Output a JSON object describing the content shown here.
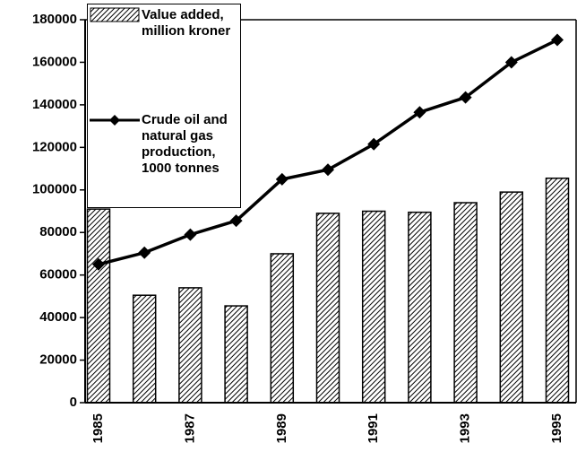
{
  "chart_data": {
    "type": "bar_line",
    "categories": [
      "1985",
      null,
      "1987",
      null,
      "1989",
      null,
      "1991",
      null,
      "1993",
      null,
      "1995"
    ],
    "series": [
      {
        "name": "Value added, million kroner",
        "type": "bar",
        "color": "#000000",
        "pattern": "hatch",
        "values": [
          91000,
          50500,
          54000,
          45500,
          70000,
          89000,
          90000,
          89500,
          94000,
          99000,
          105500
        ]
      },
      {
        "name": "Crude oil and natural gas production, 1000 tonnes",
        "type": "line",
        "color": "#000000",
        "marker": "diamond",
        "values": [
          65000,
          70500,
          79000,
          85500,
          105000,
          109500,
          121500,
          136500,
          143500,
          160000,
          170500
        ]
      }
    ],
    "ylim": [
      0,
      180000
    ],
    "yticks": [
      0,
      20000,
      40000,
      60000,
      80000,
      100000,
      120000,
      140000,
      160000,
      180000
    ],
    "grid": false,
    "legend": "upper left"
  }
}
